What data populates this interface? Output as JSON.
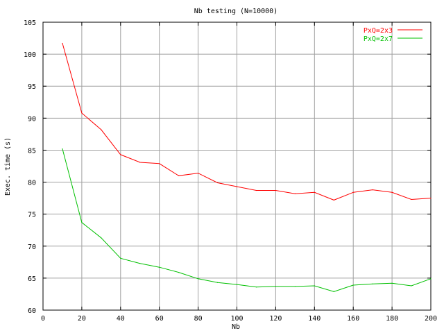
{
  "chart_data": {
    "type": "line",
    "title": "Nb testing (N=10000)",
    "xlabel": "Nb",
    "ylabel": "Exec. time (s)",
    "xlim": [
      0,
      200
    ],
    "ylim": [
      60,
      105
    ],
    "x_ticks": [
      0,
      20,
      40,
      60,
      80,
      100,
      120,
      140,
      160,
      180,
      200
    ],
    "y_ticks": [
      60,
      65,
      70,
      75,
      80,
      85,
      90,
      95,
      100,
      105
    ],
    "grid": true,
    "legend_position": "top-right",
    "x": [
      10,
      20,
      30,
      40,
      50,
      60,
      70,
      80,
      90,
      100,
      110,
      120,
      130,
      140,
      150,
      160,
      170,
      180,
      190,
      200
    ],
    "series": [
      {
        "name": "PxQ=2x3",
        "color": "#ff0000",
        "values": [
          101.7,
          90.8,
          88.2,
          84.3,
          83.1,
          82.9,
          81.0,
          81.4,
          79.9,
          79.3,
          78.7,
          78.7,
          78.2,
          78.4,
          77.2,
          78.4,
          78.8,
          78.4,
          77.3,
          77.5
        ]
      },
      {
        "name": "PxQ=2x7",
        "color": "#00c000",
        "values": [
          85.2,
          73.7,
          71.3,
          68.1,
          67.3,
          66.7,
          65.9,
          64.9,
          64.3,
          64.0,
          63.6,
          63.7,
          63.7,
          63.8,
          62.9,
          63.9,
          64.1,
          64.2,
          63.8,
          64.9
        ]
      }
    ]
  }
}
